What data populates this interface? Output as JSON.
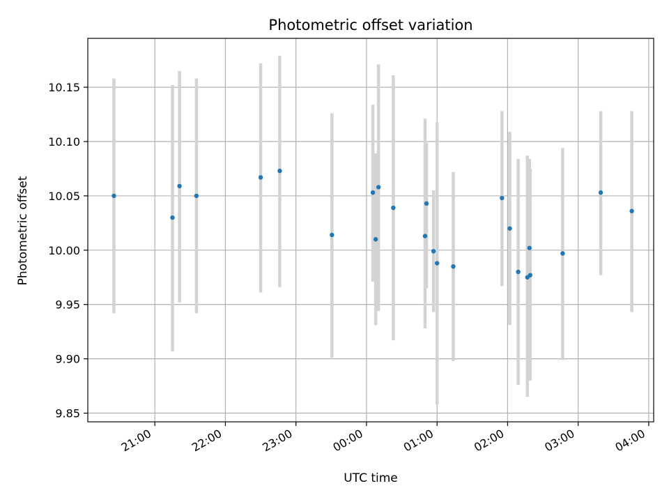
{
  "chart_data": {
    "type": "scatter",
    "title": "Photometric offset variation",
    "xlabel": "UTC time",
    "ylabel": "Photometric offset",
    "x_unit": "hours UTC (values past 24 are after midnight)",
    "xlim": [
      20.05,
      28.07
    ],
    "ylim": [
      9.842,
      10.195
    ],
    "grid": true,
    "x_ticks": [
      {
        "label": "21:00",
        "value": 21
      },
      {
        "label": "22:00",
        "value": 22
      },
      {
        "label": "23:00",
        "value": 23
      },
      {
        "label": "00:00",
        "value": 24
      },
      {
        "label": "01:00",
        "value": 25
      },
      {
        "label": "02:00",
        "value": 26
      },
      {
        "label": "03:00",
        "value": 27
      },
      {
        "label": "04:00",
        "value": 28
      }
    ],
    "y_ticks": [
      {
        "label": "9.85",
        "value": 9.85
      },
      {
        "label": "9.90",
        "value": 9.9
      },
      {
        "label": "9.95",
        "value": 9.95
      },
      {
        "label": "10.00",
        "value": 10.0
      },
      {
        "label": "10.05",
        "value": 10.05
      },
      {
        "label": "10.10",
        "value": 10.1
      },
      {
        "label": "10.15",
        "value": 10.15
      }
    ],
    "colors": {
      "marker": "#1f77b4",
      "errorbar": "#d3d3d3",
      "grid": "#b0b0b0",
      "axes": "#000000"
    },
    "series": [
      {
        "points": [
          {
            "x": 20.42,
            "y": 10.05,
            "lo": 9.942,
            "hi": 10.158
          },
          {
            "x": 21.25,
            "y": 10.03,
            "lo": 9.907,
            "hi": 10.152
          },
          {
            "x": 21.35,
            "y": 10.059,
            "lo": 9.952,
            "hi": 10.165
          },
          {
            "x": 21.59,
            "y": 10.05,
            "lo": 9.942,
            "hi": 10.158
          },
          {
            "x": 22.5,
            "y": 10.067,
            "lo": 9.961,
            "hi": 10.172
          },
          {
            "x": 22.77,
            "y": 10.073,
            "lo": 9.966,
            "hi": 10.179
          },
          {
            "x": 23.51,
            "y": 10.014,
            "lo": 9.901,
            "hi": 10.126
          },
          {
            "x": 24.09,
            "y": 10.053,
            "lo": 9.971,
            "hi": 10.134
          },
          {
            "x": 24.13,
            "y": 10.01,
            "lo": 9.931,
            "hi": 10.089
          },
          {
            "x": 24.17,
            "y": 10.058,
            "lo": 9.944,
            "hi": 10.171
          },
          {
            "x": 24.38,
            "y": 10.039,
            "lo": 9.917,
            "hi": 10.161
          },
          {
            "x": 24.83,
            "y": 10.013,
            "lo": 9.928,
            "hi": 10.121
          },
          {
            "x": 24.85,
            "y": 10.043,
            "lo": 9.965,
            "hi": 10.099
          },
          {
            "x": 24.95,
            "y": 9.999,
            "lo": 9.943,
            "hi": 10.055
          },
          {
            "x": 25.0,
            "y": 9.988,
            "lo": 9.858,
            "hi": 10.118
          },
          {
            "x": 25.23,
            "y": 9.985,
            "lo": 9.898,
            "hi": 10.072
          },
          {
            "x": 25.92,
            "y": 10.048,
            "lo": 9.967,
            "hi": 10.128
          },
          {
            "x": 26.03,
            "y": 10.02,
            "lo": 9.931,
            "hi": 10.109
          },
          {
            "x": 26.15,
            "y": 9.98,
            "lo": 9.876,
            "hi": 10.084
          },
          {
            "x": 26.28,
            "y": 9.975,
            "lo": 9.865,
            "hi": 10.087
          },
          {
            "x": 26.31,
            "y": 10.002,
            "lo": 9.926,
            "hi": 10.084
          },
          {
            "x": 26.32,
            "y": 9.977,
            "lo": 9.88,
            "hi": 10.075
          },
          {
            "x": 26.78,
            "y": 9.997,
            "lo": 9.899,
            "hi": 10.094
          },
          {
            "x": 27.32,
            "y": 10.053,
            "lo": 9.977,
            "hi": 10.128
          },
          {
            "x": 27.76,
            "y": 10.036,
            "lo": 9.943,
            "hi": 10.128
          }
        ]
      }
    ]
  }
}
